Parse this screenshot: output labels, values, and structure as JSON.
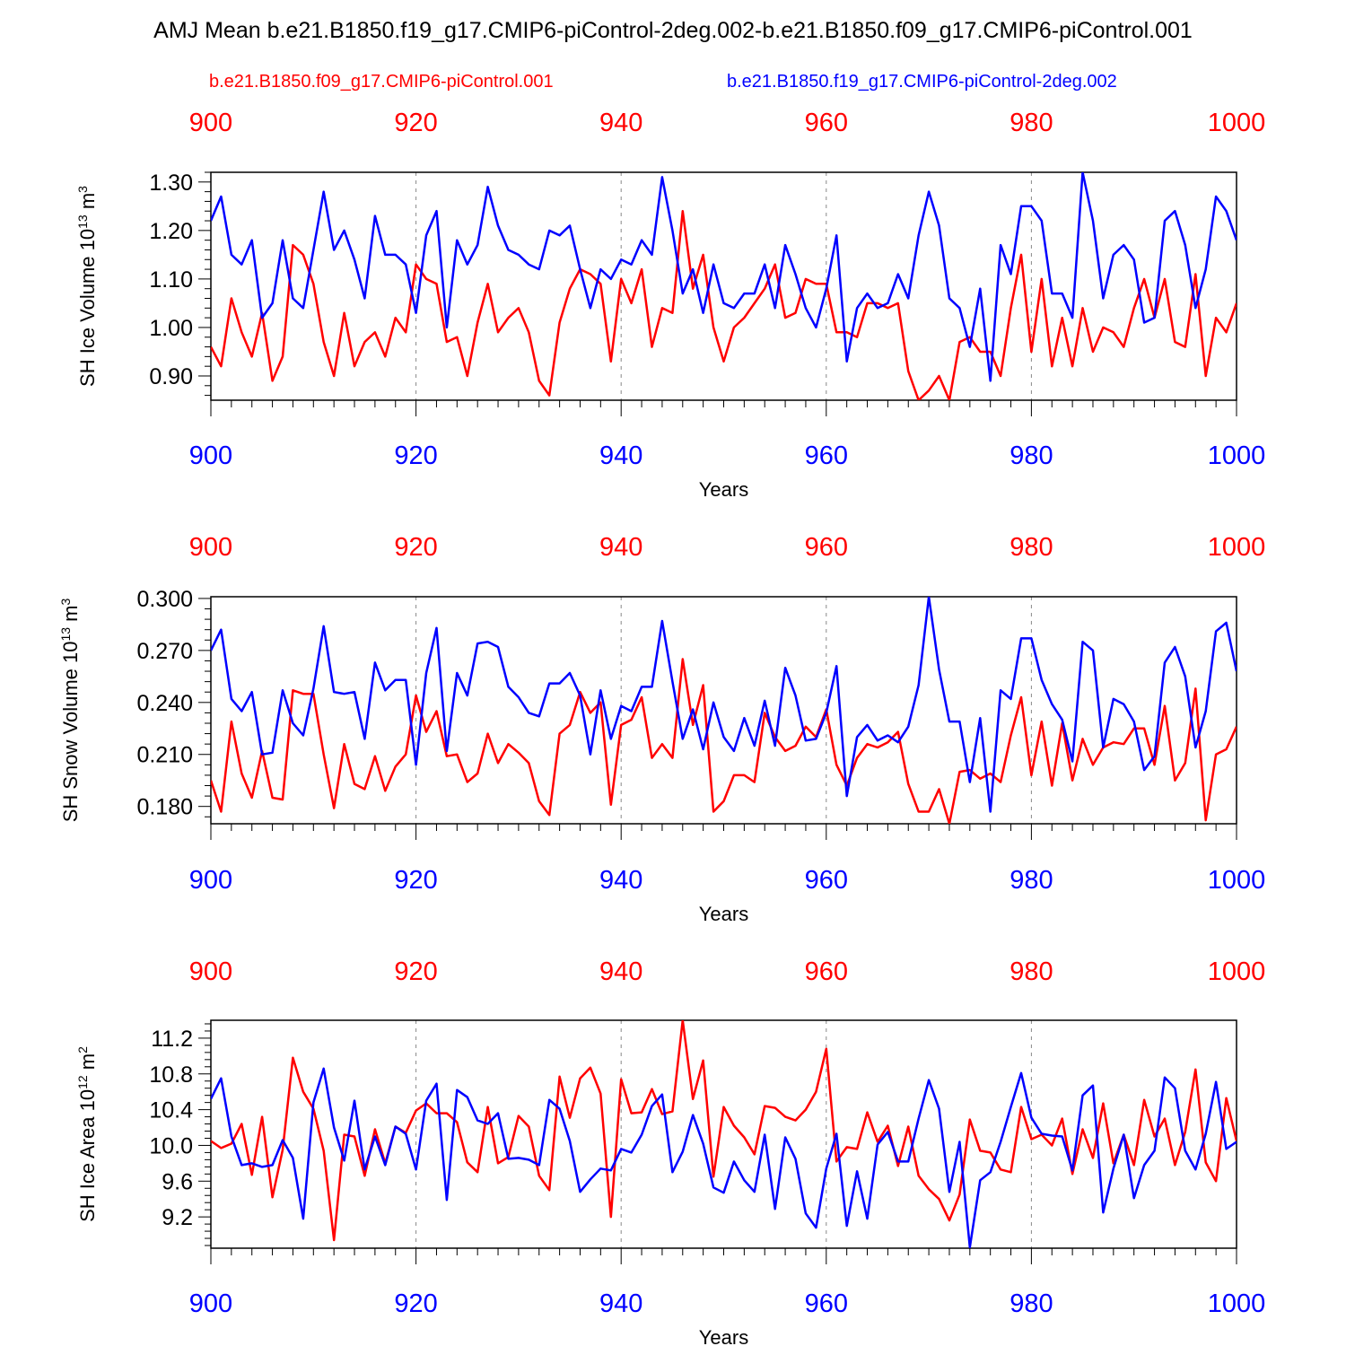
{
  "title": "AMJ Mean b.e21.B1850.f19_g17.CMIP6-piControl-2deg.002-b.e21.B1850.f09_g17.CMIP6-piControl.001",
  "legend": {
    "red": "b.e21.B1850.f09_g17.CMIP6-piControl.001",
    "blue": "b.e21.B1850.f19_g17.CMIP6-piControl-2deg.002"
  },
  "colors": {
    "red": "#ff0000",
    "blue": "#0000ff"
  },
  "chart_data": [
    {
      "type": "line",
      "ylabel_main": "SH Ice Volume 10",
      "ylabel_exp": "13",
      "ylabel_unit": " m",
      "ylabel_unit_exp": "3",
      "xlabel": "Years",
      "xlim": [
        900,
        1000
      ],
      "xticks": [
        900,
        920,
        940,
        960,
        980,
        1000
      ],
      "ylim": [
        0.85,
        1.32
      ],
      "yticks": [
        0.9,
        1.0,
        1.1,
        1.2,
        1.3
      ],
      "ytick_labels": [
        "0.90",
        "1.00",
        "1.10",
        "1.20",
        "1.30"
      ],
      "series": [
        {
          "name": "b.e21.B1850.f09_g17.CMIP6-piControl.001",
          "color": "red",
          "values": [
            0.96,
            0.92,
            1.06,
            0.99,
            0.94,
            1.03,
            0.89,
            0.94,
            1.17,
            1.15,
            1.09,
            0.97,
            0.9,
            1.03,
            0.92,
            0.97,
            0.99,
            0.94,
            1.02,
            0.99,
            1.13,
            1.1,
            1.09,
            0.97,
            0.98,
            0.9,
            1.01,
            1.09,
            0.99,
            1.02,
            1.04,
            0.99,
            0.89,
            0.86,
            1.01,
            1.08,
            1.12,
            1.11,
            1.09,
            0.93,
            1.1,
            1.05,
            1.12,
            0.96,
            1.04,
            1.03,
            1.24,
            1.08,
            1.15,
            1.0,
            0.93,
            1.0,
            1.02,
            1.05,
            1.08,
            1.13,
            1.02,
            1.03,
            1.1,
            1.09,
            1.09,
            0.99,
            0.99,
            0.98,
            1.05,
            1.05,
            1.04,
            1.05,
            0.91,
            0.85,
            0.87,
            0.9,
            0.85,
            0.97,
            0.98,
            0.95,
            0.95,
            0.9,
            1.04,
            1.15,
            0.95,
            1.1,
            0.92,
            1.02,
            0.92,
            1.04,
            0.95,
            1.0,
            0.99,
            0.96,
            1.04,
            1.1,
            1.02,
            1.1,
            0.97,
            0.96,
            1.11,
            0.9,
            1.02,
            0.99,
            1.05
          ]
        },
        {
          "name": "b.e21.B1850.f19_g17.CMIP6-piControl-2deg.002",
          "color": "blue",
          "values": [
            1.22,
            1.27,
            1.15,
            1.13,
            1.18,
            1.02,
            1.05,
            1.18,
            1.06,
            1.04,
            1.16,
            1.28,
            1.16,
            1.2,
            1.14,
            1.06,
            1.23,
            1.15,
            1.15,
            1.13,
            1.03,
            1.19,
            1.24,
            1.0,
            1.18,
            1.13,
            1.17,
            1.29,
            1.21,
            1.16,
            1.15,
            1.13,
            1.12,
            1.2,
            1.19,
            1.21,
            1.12,
            1.04,
            1.12,
            1.1,
            1.14,
            1.13,
            1.18,
            1.15,
            1.31,
            1.2,
            1.07,
            1.12,
            1.03,
            1.13,
            1.05,
            1.04,
            1.07,
            1.07,
            1.13,
            1.04,
            1.17,
            1.11,
            1.04,
            1.0,
            1.08,
            1.19,
            0.93,
            1.04,
            1.07,
            1.04,
            1.05,
            1.11,
            1.06,
            1.19,
            1.28,
            1.21,
            1.06,
            1.04,
            0.96,
            1.08,
            0.89,
            1.17,
            1.11,
            1.25,
            1.25,
            1.22,
            1.07,
            1.07,
            1.02,
            1.32,
            1.22,
            1.06,
            1.15,
            1.17,
            1.14,
            1.01,
            1.02,
            1.22,
            1.24,
            1.17,
            1.04,
            1.12,
            1.27,
            1.24,
            1.18
          ]
        }
      ]
    },
    {
      "type": "line",
      "ylabel_main": "SH Snow Volume 10",
      "ylabel_exp": "13",
      "ylabel_unit": " m",
      "ylabel_unit_exp": "3",
      "xlabel": "Years",
      "xlim": [
        900,
        1000
      ],
      "xticks": [
        900,
        920,
        940,
        960,
        980,
        1000
      ],
      "ylim": [
        0.17,
        0.301
      ],
      "yticks": [
        0.18,
        0.21,
        0.24,
        0.27,
        0.3
      ],
      "ytick_labels": [
        "0.180",
        "0.210",
        "0.240",
        "0.270",
        "0.300"
      ],
      "series": [
        {
          "name": "b.e21.B1850.f09_g17.CMIP6-piControl.001",
          "color": "red",
          "values": [
            0.195,
            0.177,
            0.229,
            0.199,
            0.185,
            0.212,
            0.185,
            0.184,
            0.247,
            0.245,
            0.245,
            0.21,
            0.179,
            0.216,
            0.193,
            0.19,
            0.209,
            0.189,
            0.203,
            0.21,
            0.244,
            0.223,
            0.235,
            0.209,
            0.21,
            0.194,
            0.199,
            0.222,
            0.205,
            0.216,
            0.211,
            0.205,
            0.183,
            0.175,
            0.222,
            0.227,
            0.246,
            0.234,
            0.24,
            0.181,
            0.227,
            0.23,
            0.243,
            0.208,
            0.216,
            0.208,
            0.265,
            0.227,
            0.25,
            0.177,
            0.183,
            0.198,
            0.198,
            0.194,
            0.234,
            0.22,
            0.212,
            0.215,
            0.226,
            0.22,
            0.236,
            0.204,
            0.192,
            0.208,
            0.216,
            0.214,
            0.217,
            0.223,
            0.193,
            0.177,
            0.177,
            0.19,
            0.17,
            0.2,
            0.201,
            0.196,
            0.199,
            0.194,
            0.221,
            0.243,
            0.198,
            0.229,
            0.192,
            0.228,
            0.195,
            0.219,
            0.204,
            0.214,
            0.217,
            0.216,
            0.225,
            0.225,
            0.204,
            0.238,
            0.195,
            0.205,
            0.248,
            0.172,
            0.21,
            0.213,
            0.226
          ]
        },
        {
          "name": "b.e21.B1850.f19_g17.CMIP6-piControl-2deg.002",
          "color": "blue",
          "values": [
            0.27,
            0.282,
            0.242,
            0.235,
            0.246,
            0.21,
            0.211,
            0.247,
            0.228,
            0.221,
            0.248,
            0.284,
            0.246,
            0.245,
            0.246,
            0.219,
            0.263,
            0.247,
            0.253,
            0.253,
            0.204,
            0.257,
            0.283,
            0.212,
            0.257,
            0.244,
            0.274,
            0.275,
            0.272,
            0.249,
            0.243,
            0.234,
            0.232,
            0.251,
            0.251,
            0.257,
            0.244,
            0.21,
            0.247,
            0.219,
            0.238,
            0.235,
            0.249,
            0.249,
            0.287,
            0.252,
            0.219,
            0.236,
            0.213,
            0.24,
            0.22,
            0.212,
            0.231,
            0.215,
            0.241,
            0.215,
            0.26,
            0.244,
            0.218,
            0.219,
            0.234,
            0.261,
            0.186,
            0.22,
            0.227,
            0.218,
            0.221,
            0.217,
            0.226,
            0.25,
            0.301,
            0.259,
            0.229,
            0.229,
            0.194,
            0.231,
            0.177,
            0.247,
            0.242,
            0.277,
            0.277,
            0.253,
            0.239,
            0.23,
            0.206,
            0.275,
            0.27,
            0.214,
            0.242,
            0.239,
            0.229,
            0.201,
            0.209,
            0.263,
            0.272,
            0.255,
            0.214,
            0.235,
            0.281,
            0.286,
            0.258
          ]
        }
      ]
    },
    {
      "type": "line",
      "ylabel_main": "SH Ice Area 10",
      "ylabel_exp": "12",
      "ylabel_unit": " m",
      "ylabel_unit_exp": "2",
      "xlabel": "Years",
      "xlim": [
        900,
        1000
      ],
      "xticks": [
        900,
        920,
        940,
        960,
        980,
        1000
      ],
      "ylim": [
        8.85,
        11.4
      ],
      "yticks": [
        9.2,
        9.6,
        10.0,
        10.4,
        10.8,
        11.2
      ],
      "ytick_labels": [
        "9.2",
        "9.6",
        "10.0",
        "10.4",
        "10.8",
        "11.2"
      ],
      "series": [
        {
          "name": "b.e21.B1850.f09_g17.CMIP6-piControl.001",
          "color": "red",
          "values": [
            10.05,
            9.97,
            10.02,
            10.24,
            9.67,
            10.32,
            9.42,
            9.95,
            10.98,
            10.6,
            10.41,
            9.94,
            8.94,
            10.12,
            10.1,
            9.66,
            10.18,
            9.8,
            10.21,
            10.14,
            10.39,
            10.47,
            10.36,
            10.36,
            10.26,
            9.81,
            9.7,
            10.43,
            9.8,
            9.87,
            10.33,
            10.21,
            9.66,
            9.5,
            10.77,
            10.31,
            10.75,
            10.87,
            10.58,
            9.2,
            10.74,
            10.36,
            10.37,
            10.63,
            10.35,
            10.38,
            11.4,
            10.52,
            10.95,
            9.65,
            10.43,
            10.22,
            10.09,
            9.9,
            10.44,
            10.42,
            10.32,
            10.28,
            10.4,
            10.6,
            11.08,
            9.82,
            9.98,
            9.96,
            10.37,
            10.04,
            10.22,
            9.77,
            10.21,
            9.66,
            9.51,
            9.4,
            9.16,
            9.45,
            10.29,
            9.94,
            9.92,
            9.73,
            9.7,
            10.43,
            10.07,
            10.12,
            10.0,
            10.3,
            9.68,
            10.18,
            9.86,
            10.47,
            9.8,
            10.12,
            9.78,
            10.51,
            10.1,
            10.3,
            9.78,
            10.15,
            10.85,
            9.81,
            9.6,
            10.53,
            10.05
          ]
        },
        {
          "name": "b.e21.B1850.f19_g17.CMIP6-piControl-2deg.002",
          "color": "blue",
          "values": [
            10.52,
            10.75,
            10.1,
            9.78,
            9.8,
            9.76,
            9.78,
            10.06,
            9.86,
            9.18,
            10.48,
            10.86,
            10.2,
            9.83,
            10.5,
            9.73,
            10.1,
            9.78,
            10.21,
            10.13,
            9.73,
            10.5,
            10.69,
            9.39,
            10.62,
            10.54,
            10.28,
            10.24,
            10.36,
            9.85,
            9.86,
            9.84,
            9.78,
            10.51,
            10.41,
            10.05,
            9.48,
            9.62,
            9.74,
            9.72,
            9.96,
            9.92,
            10.12,
            10.44,
            10.57,
            9.7,
            9.93,
            10.34,
            10.02,
            9.53,
            9.47,
            9.82,
            9.61,
            9.48,
            10.12,
            9.29,
            10.09,
            9.85,
            9.24,
            9.08,
            9.74,
            10.13,
            9.1,
            9.71,
            9.18,
            10.01,
            10.15,
            9.82,
            9.82,
            10.3,
            10.73,
            10.41,
            9.48,
            10.04,
            8.86,
            9.61,
            9.7,
            10.04,
            10.43,
            10.81,
            10.31,
            10.13,
            10.11,
            10.1,
            9.72,
            10.56,
            10.67,
            9.25,
            9.74,
            10.12,
            9.41,
            9.78,
            9.94,
            10.76,
            10.64,
            9.94,
            9.73,
            10.13,
            10.71,
            9.96,
            10.04
          ]
        }
      ]
    }
  ]
}
